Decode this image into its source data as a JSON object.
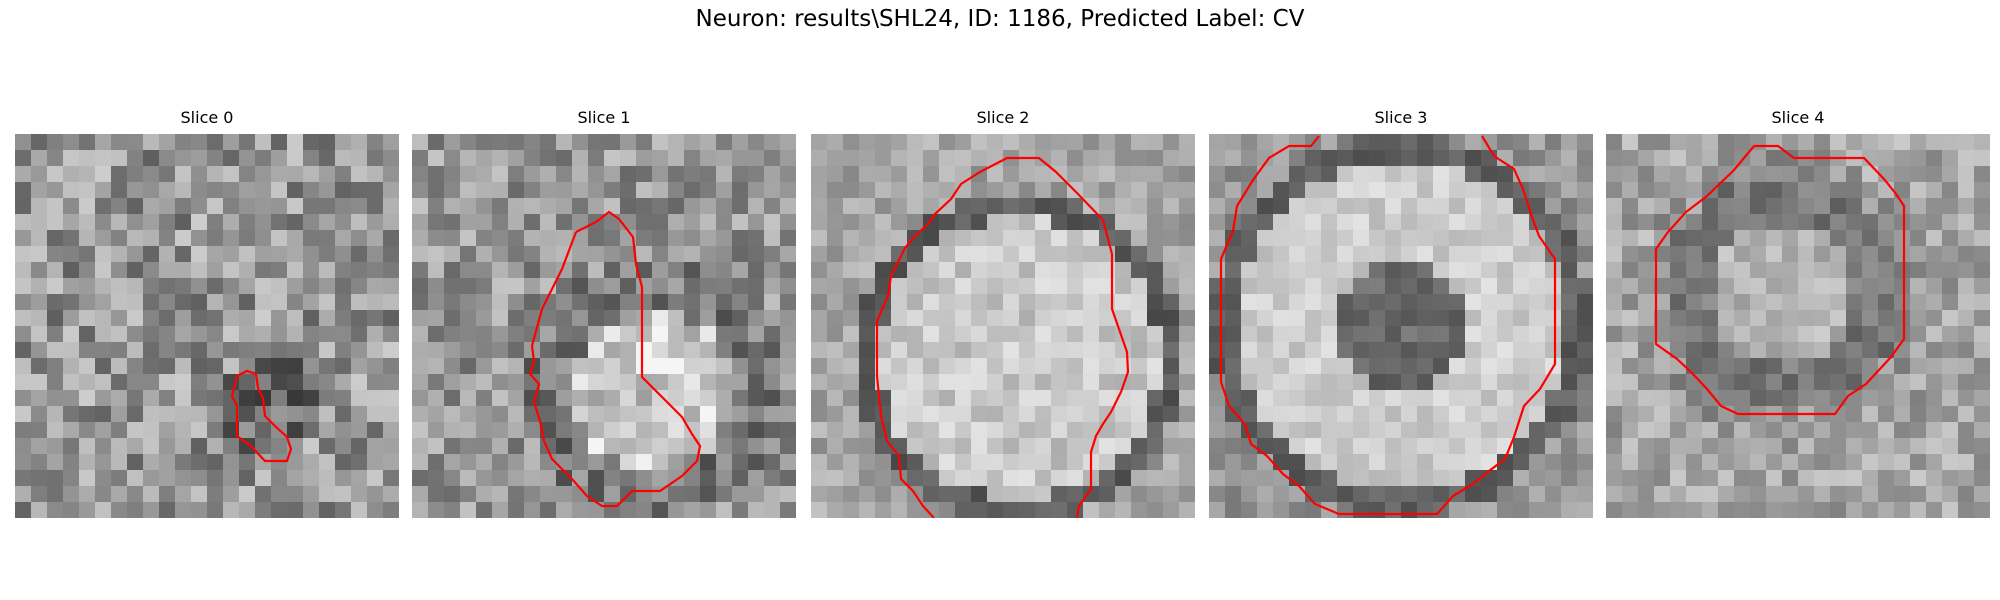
{
  "figure": {
    "title": "Neuron: results\\SHL24, ID: 1186, Predicted Label: CV"
  },
  "panels": [
    {
      "title": "Slice 0",
      "background": "noisy",
      "contour_color": "#ff0000"
    },
    {
      "title": "Slice 1",
      "background": "blob-lower-right",
      "contour_color": "#ff0000"
    },
    {
      "title": "Slice 2",
      "background": "bright-disc",
      "contour_color": "#ff0000"
    },
    {
      "title": "Slice 3",
      "background": "ring-dark-center",
      "contour_color": "#ff0000"
    },
    {
      "title": "Slice 4",
      "background": "dark-ring",
      "contour_color": "#ff0000"
    }
  ],
  "colors": {
    "contour": "#ff0000",
    "colormap": "gray"
  }
}
